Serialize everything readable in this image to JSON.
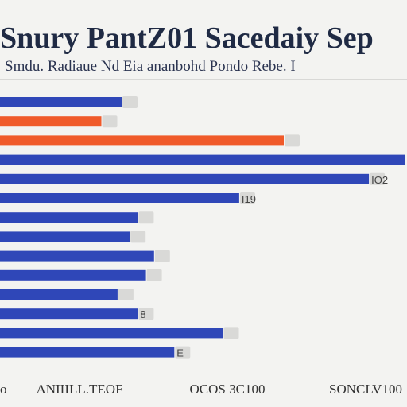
{
  "title": "Snury PantZ01 Sacedaiy Sep",
  "subtitle": "Smdu. Radiaue Nd Eia ananbohd Pondo Rebe. I",
  "chart_data": {
    "type": "bar",
    "orientation": "horizontal",
    "title": "Snury PantZ01 Sacedaiy Sep",
    "subtitle": "Smdu. Radiaue Nd Eia ananbohd Pondo Rebe. I",
    "xlabel": "",
    "ylabel": "",
    "xlim": [
      0,
      100
    ],
    "grid": false,
    "legend": "none",
    "colors": {
      "blue": "#2f47b8",
      "orange": "#f05a2a",
      "label_box": "#d9d9d7"
    },
    "bars": [
      {
        "value": 30,
        "color": "blue",
        "label": ""
      },
      {
        "value": 25,
        "color": "orange",
        "label": ""
      },
      {
        "value": 70,
        "color": "orange",
        "label": ""
      },
      {
        "value": 100,
        "color": "blue",
        "label": ""
      },
      {
        "value": 91,
        "color": "blue",
        "label": "IO2"
      },
      {
        "value": 59,
        "color": "blue",
        "label": "I19"
      },
      {
        "value": 34,
        "color": "blue",
        "label": ""
      },
      {
        "value": 32,
        "color": "blue",
        "label": ""
      },
      {
        "value": 38,
        "color": "blue",
        "label": ""
      },
      {
        "value": 36,
        "color": "blue",
        "label": ""
      },
      {
        "value": 29,
        "color": "blue",
        "label": ""
      },
      {
        "value": 34,
        "color": "blue",
        "label": "8"
      },
      {
        "value": 55,
        "color": "blue",
        "label": ""
      },
      {
        "value": 43,
        "color": "blue",
        "label": "E"
      }
    ],
    "x_tick_labels": [
      "o",
      "ANIIILL.TEOF",
      "OCOS 3C100",
      "SONCLV100"
    ]
  }
}
